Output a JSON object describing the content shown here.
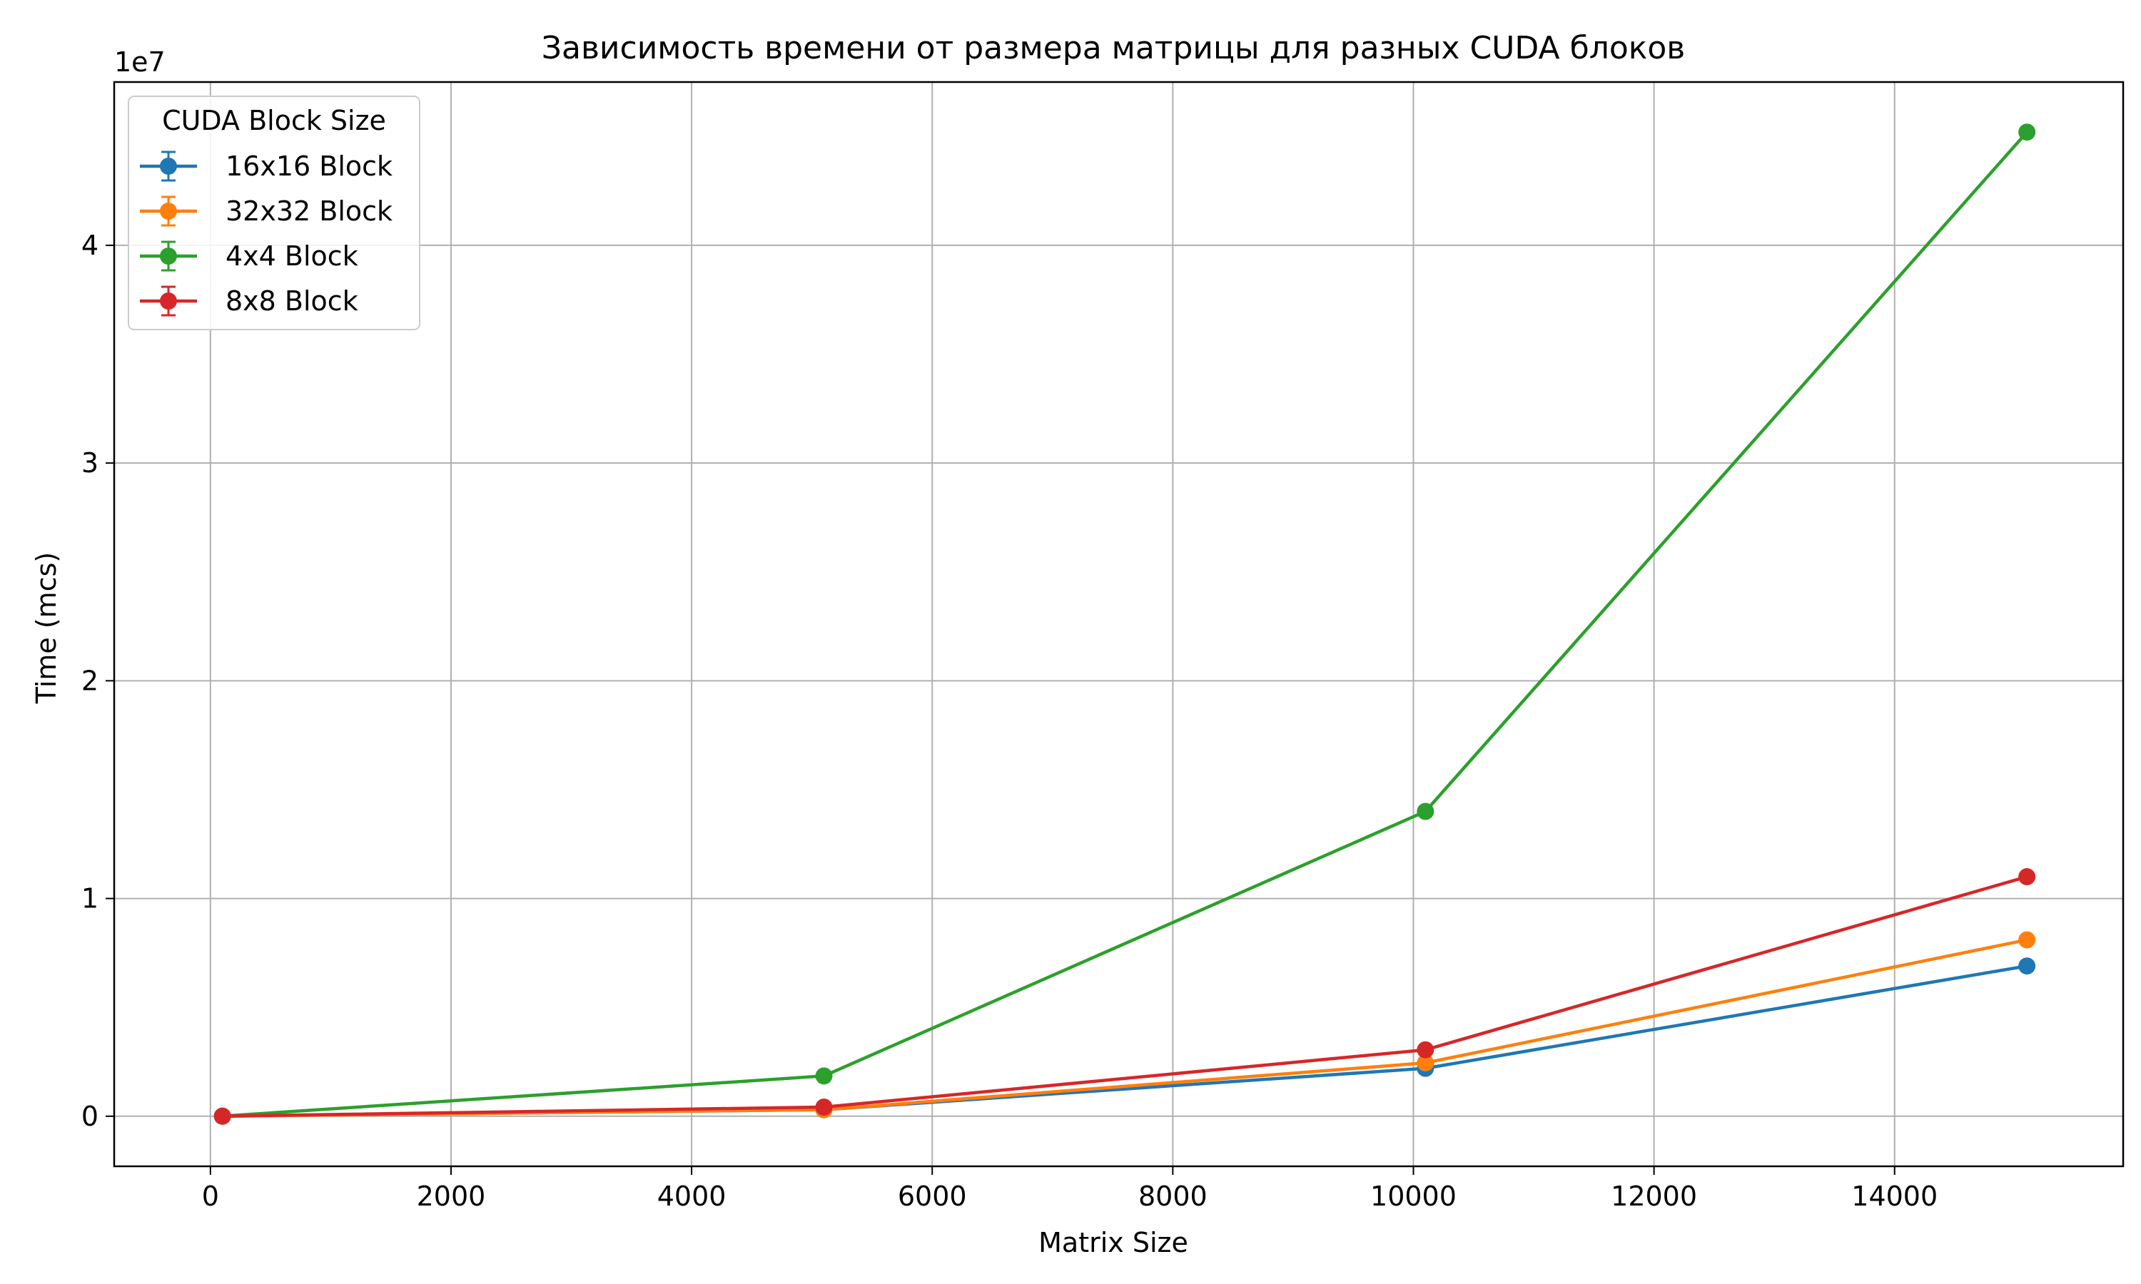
{
  "chart_data": {
    "type": "line",
    "title": "Зависимость времени от размера матрицы для разных CUDA блоков",
    "xlabel": "Matrix Size",
    "ylabel": "Time (mcs)",
    "y_offset_label": "1e7",
    "xlim": [
      -800,
      15900
    ],
    "ylim": [
      -2300000,
      47500000
    ],
    "x_ticks": [
      0,
      2000,
      4000,
      6000,
      8000,
      10000,
      12000,
      14000
    ],
    "x_tick_labels": [
      "0",
      "2000",
      "4000",
      "6000",
      "8000",
      "10000",
      "12000",
      "14000"
    ],
    "y_ticks": [
      0,
      10000000,
      20000000,
      30000000,
      40000000
    ],
    "y_tick_labels": [
      "0",
      "1",
      "2",
      "3",
      "4"
    ],
    "grid": true,
    "legend": {
      "title": "CUDA Block Size",
      "placement": "upper-left"
    },
    "x": [
      100,
      5100,
      10100,
      15100
    ],
    "series": [
      {
        "name": "16x16 Block",
        "color": "#1f77b4",
        "values": [
          2000,
          300000,
          2200000,
          6900000
        ]
      },
      {
        "name": "32x32 Block",
        "color": "#ff7f0e",
        "values": [
          2000,
          300000,
          2450000,
          8100000
        ]
      },
      {
        "name": "4x4 Block",
        "color": "#2ca02c",
        "values": [
          5000,
          1850000,
          14000000,
          45200000
        ]
      },
      {
        "name": "8x8 Block",
        "color": "#d62728",
        "values": [
          3000,
          420000,
          3050000,
          11000000
        ]
      }
    ]
  }
}
